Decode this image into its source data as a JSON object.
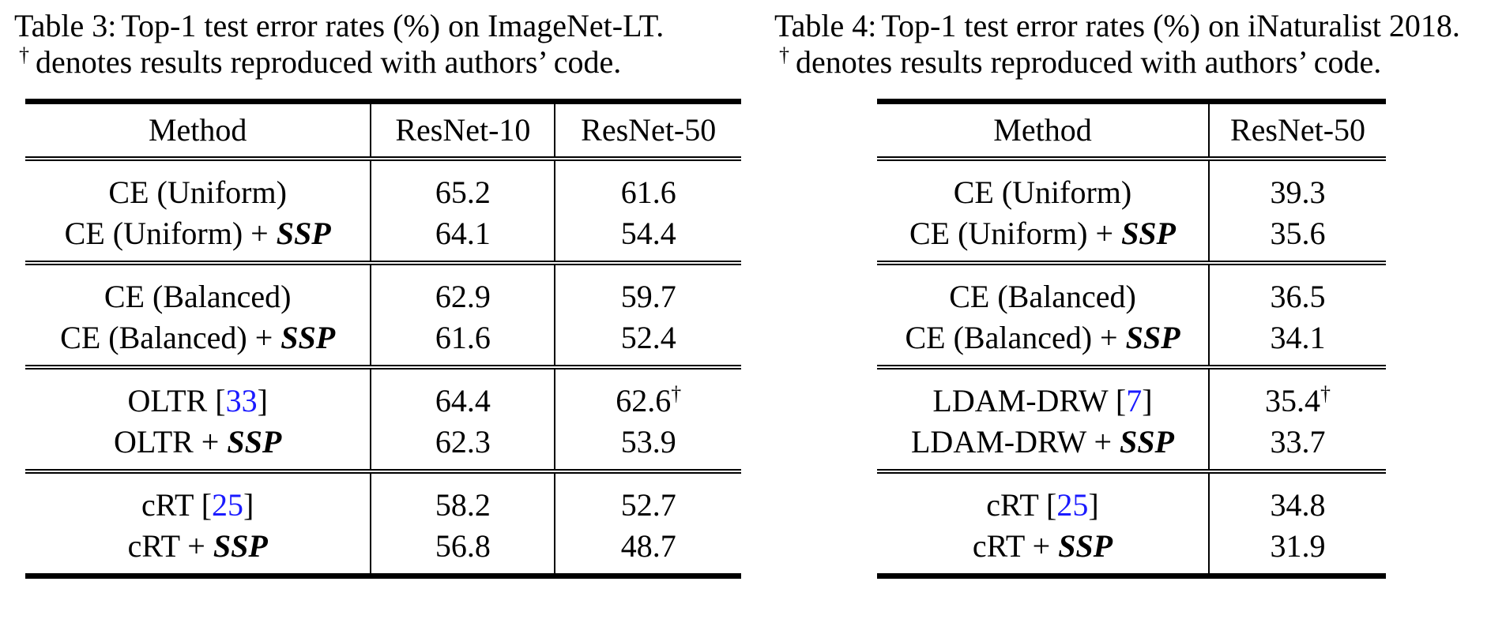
{
  "left": {
    "caption": {
      "label": "Table 3:",
      "text": "Top-1 test error rates (%) on ImageNet-LT.",
      "dagger": "†",
      "note": "denotes results reproduced with authors’ code."
    },
    "headers": [
      "Method",
      "ResNet-10",
      "ResNet-50"
    ],
    "groups": [
      {
        "base": {
          "name": "CE (Uniform)",
          "cite": "",
          "vals": [
            "65.2",
            "61.6"
          ],
          "dagger": ""
        },
        "ssp": {
          "prefix": "CE (Uniform) + ",
          "suffix": "SSP",
          "vals": [
            "64.1",
            "54.4"
          ]
        }
      },
      {
        "base": {
          "name": "CE (Balanced)",
          "cite": "",
          "vals": [
            "62.9",
            "59.7"
          ],
          "dagger": ""
        },
        "ssp": {
          "prefix": "CE (Balanced) + ",
          "suffix": "SSP",
          "vals": [
            "61.6",
            "52.4"
          ]
        }
      },
      {
        "base": {
          "name": "OLTR [",
          "cite": "33",
          "close": "]",
          "vals": [
            "64.4",
            "62.6"
          ],
          "dagger": "†"
        },
        "ssp": {
          "prefix": "OLTR + ",
          "suffix": "SSP",
          "vals": [
            "62.3",
            "53.9"
          ]
        }
      },
      {
        "base": {
          "name": "cRT [",
          "cite": "25",
          "close": "]",
          "vals": [
            "58.2",
            "52.7"
          ],
          "dagger": ""
        },
        "ssp": {
          "prefix": "cRT + ",
          "suffix": "SSP",
          "vals": [
            "56.8",
            "48.7"
          ]
        }
      }
    ]
  },
  "right": {
    "caption": {
      "label": "Table 4:",
      "text": "Top-1 test error rates (%) on iNaturalist 2018.",
      "dagger": "†",
      "note": "denotes results reproduced with authors’ code."
    },
    "headers": [
      "Method",
      "ResNet-50"
    ],
    "groups": [
      {
        "base": {
          "name": "CE (Uniform)",
          "cite": "",
          "vals": [
            "39.3"
          ],
          "dagger": ""
        },
        "ssp": {
          "prefix": "CE (Uniform) + ",
          "suffix": "SSP",
          "vals": [
            "35.6"
          ]
        }
      },
      {
        "base": {
          "name": "CE (Balanced)",
          "cite": "",
          "vals": [
            "36.5"
          ],
          "dagger": ""
        },
        "ssp": {
          "prefix": "CE (Balanced) + ",
          "suffix": "SSP",
          "vals": [
            "34.1"
          ]
        }
      },
      {
        "base": {
          "name": "LDAM-DRW [",
          "cite": "7",
          "close": "]",
          "vals": [
            "35.4"
          ],
          "dagger": "†"
        },
        "ssp": {
          "prefix": "LDAM-DRW + ",
          "suffix": "SSP",
          "vals": [
            "33.7"
          ]
        }
      },
      {
        "base": {
          "name": "cRT [",
          "cite": "25",
          "close": "]",
          "vals": [
            "34.8"
          ],
          "dagger": ""
        },
        "ssp": {
          "prefix": "cRT + ",
          "suffix": "SSP",
          "vals": [
            "31.9"
          ]
        }
      }
    ]
  },
  "colors": {
    "text": "#000000",
    "citation": "#1a1aff",
    "background": "#ffffff"
  }
}
